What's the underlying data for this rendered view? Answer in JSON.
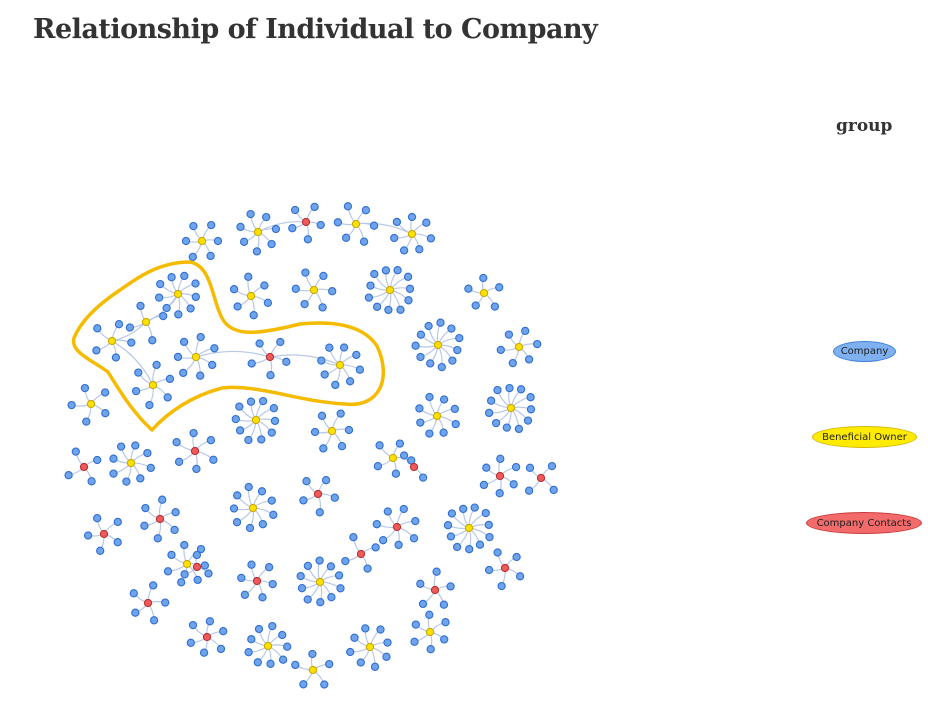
{
  "title": "Relationship of Individual to Company",
  "legend": {
    "title": "group",
    "items": [
      {
        "label": "Company",
        "fill": "#7fb0f0",
        "stroke": "#3f7fd8"
      },
      {
        "label": "Beneficial Owner",
        "fill": "#ffeb00",
        "stroke": "#d6b800"
      },
      {
        "label": "Company Contacts",
        "fill": "#f26a6a",
        "stroke": "#c93a3a"
      }
    ]
  },
  "colors": {
    "company": "#6fa3ec",
    "company_stroke": "#2f6fd0",
    "beneficial_owner": "#ffe100",
    "beneficial_owner_stroke": "#c9a800",
    "company_contacts": "#f05a5a",
    "company_contacts_stroke": "#b83232",
    "edge": "#b8c8e8",
    "highlight": "#f5bb00"
  }
}
